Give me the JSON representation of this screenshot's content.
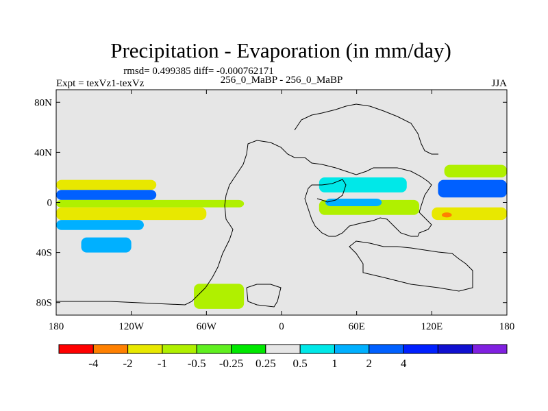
{
  "chart_data": {
    "type": "heatmap",
    "title": "Precipitation - Evaporation (in mm/day)",
    "stats_label": "rmsd= 0.499385 diff= -0.000762171",
    "left_label": "Expt = texVz1-texVz",
    "center_label": "256_0_MaBP - 256_0_MaBP",
    "right_label": "JJA",
    "x_ticks": [
      {
        "value": -180,
        "label": "180"
      },
      {
        "value": -120,
        "label": "120W"
      },
      {
        "value": -60,
        "label": "60W"
      },
      {
        "value": 0,
        "label": "0"
      },
      {
        "value": 60,
        "label": "60E"
      },
      {
        "value": 120,
        "label": "120E"
      },
      {
        "value": 180,
        "label": "180"
      }
    ],
    "y_ticks": [
      {
        "value": 80,
        "label": "80N"
      },
      {
        "value": 40,
        "label": "40N"
      },
      {
        "value": 0,
        "label": "0"
      },
      {
        "value": -40,
        "label": "40S"
      },
      {
        "value": -80,
        "label": "80S"
      }
    ],
    "xlim": [
      -180,
      180
    ],
    "ylim": [
      -90,
      90
    ],
    "colorbar": {
      "colors": [
        "#ff0000",
        "#ff8000",
        "#e8e800",
        "#b0f000",
        "#60f020",
        "#00e800",
        "#e6e6e6",
        "#00e8e8",
        "#00b0ff",
        "#0060ff",
        "#0020ff",
        "#1010d0",
        "#8020e0"
      ],
      "levels": [
        "-4",
        "-2",
        "-1",
        "-0.5",
        "-0.25",
        "0.25",
        "0.5",
        "1",
        "2",
        "4"
      ]
    },
    "bands": [
      {
        "lat": [
          10,
          18
        ],
        "lon": [
          -180,
          -100
        ],
        "value": -2
      },
      {
        "lat": [
          2,
          10
        ],
        "lon": [
          -180,
          -100
        ],
        "value": 3
      },
      {
        "lat": [
          -4,
          2
        ],
        "lon": [
          -180,
          -30
        ],
        "value": -1
      },
      {
        "lat": [
          -14,
          -4
        ],
        "lon": [
          -180,
          -60
        ],
        "value": -1.5
      },
      {
        "lat": [
          -22,
          -14
        ],
        "lon": [
          -180,
          -110
        ],
        "value": 1.5
      },
      {
        "lat": [
          -40,
          -28
        ],
        "lon": [
          -160,
          -120
        ],
        "value": 1.5
      },
      {
        "lat": [
          -70,
          -60
        ],
        "lon": [
          -180,
          -140
        ],
        "value": 0.3
      },
      {
        "lat": [
          -85,
          -65
        ],
        "lon": [
          -70,
          -30
        ],
        "value": -0.6
      },
      {
        "lat": [
          20,
          30
        ],
        "lon": [
          130,
          180
        ],
        "value": -1
      },
      {
        "lat": [
          4,
          18
        ],
        "lon": [
          125,
          180
        ],
        "value": 2
      },
      {
        "lat": [
          -14,
          -4
        ],
        "lon": [
          120,
          180
        ],
        "value": -1.5
      },
      {
        "lat": [
          -12,
          -8
        ],
        "lon": [
          128,
          136
        ],
        "value": -3
      },
      {
        "lat": [
          -40,
          -20
        ],
        "lon": [
          130,
          180
        ],
        "value": 0.3
      },
      {
        "lat": [
          8,
          20
        ],
        "lon": [
          30,
          100
        ],
        "value": 0.8
      },
      {
        "lat": [
          -10,
          2
        ],
        "lon": [
          30,
          110
        ],
        "value": -0.8
      },
      {
        "lat": [
          -3,
          3
        ],
        "lon": [
          35,
          80
        ],
        "value": 1.5
      },
      {
        "lat": [
          -25,
          -15
        ],
        "lon": [
          80,
          100
        ],
        "value": 0.3
      }
    ]
  }
}
